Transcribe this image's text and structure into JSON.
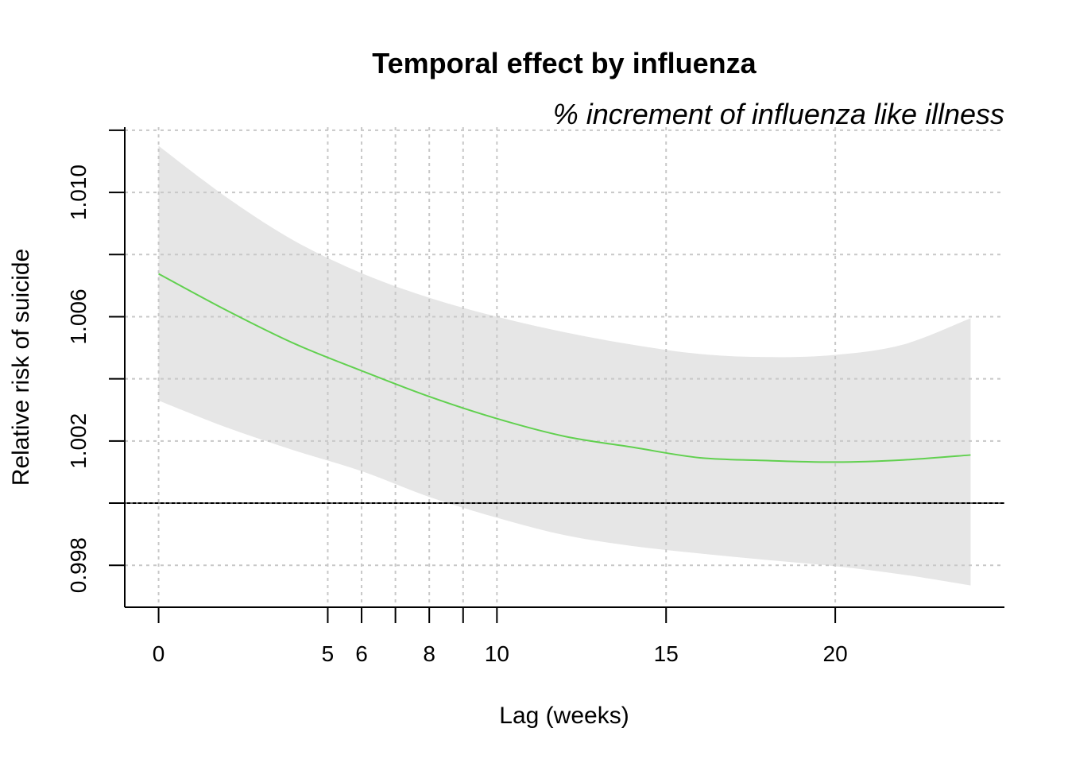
{
  "chart_data": {
    "type": "line",
    "title": "Temporal effect by influenza",
    "subtitle": "% increment of influenza like illness",
    "xlabel": "Lag (weeks)",
    "ylabel": "Relative risk of suicide",
    "xlim": [
      -1,
      25
    ],
    "ylim": [
      0.99665,
      1.0121
    ],
    "x_ticks": [
      0,
      5,
      6,
      7,
      8,
      9,
      10,
      15,
      20
    ],
    "x_tick_labels": [
      "0",
      "5",
      "6",
      "",
      "8",
      "",
      "10",
      "15",
      "20"
    ],
    "y_ticks": [
      0.998,
      1.0,
      1.002,
      1.004,
      1.006,
      1.008,
      1.01,
      1.012
    ],
    "y_tick_labels": [
      "0.998",
      "",
      "1.002",
      "",
      "1.006",
      "",
      "1.010",
      ""
    ],
    "x_grid": [
      0,
      5,
      6,
      7,
      8,
      9,
      10,
      15,
      20
    ],
    "y_grid": [
      0.998,
      1.002,
      1.004,
      1.006,
      1.008,
      1.01,
      1.012
    ],
    "reference_line": 1.0,
    "grid": true,
    "colors": {
      "line": "#61d04f",
      "band": "#e6e6e6",
      "grid": "#c8c8c8",
      "axis": "#000000"
    },
    "series": [
      {
        "x": [
          0,
          2,
          4,
          6,
          8,
          10,
          12,
          14,
          16,
          18,
          20,
          22,
          24
        ],
        "values": [
          1.00738,
          1.00621,
          1.00514,
          1.00426,
          1.00343,
          1.00272,
          1.00215,
          1.0018,
          1.00146,
          1.00137,
          1.00132,
          1.00139,
          1.00155
        ],
        "lower": [
          1.0033,
          1.00244,
          1.0017,
          1.00103,
          1.0002,
          0.99953,
          0.99897,
          0.99862,
          0.99838,
          0.99817,
          0.99797,
          0.9977,
          0.99735
        ],
        "upper": [
          1.0115,
          1.00985,
          1.00845,
          1.0074,
          1.00661,
          1.006,
          1.0055,
          1.0051,
          1.0048,
          1.0047,
          1.00477,
          1.0051,
          1.00595
        ]
      }
    ]
  }
}
